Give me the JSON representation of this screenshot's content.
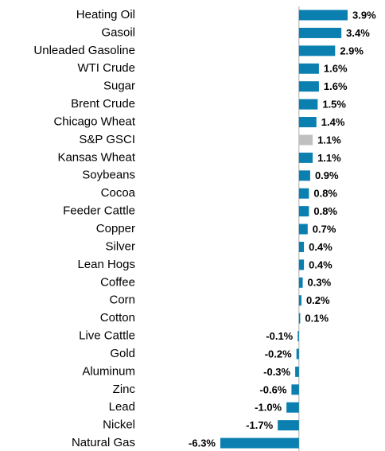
{
  "chart_data": {
    "type": "bar",
    "orientation": "horizontal",
    "categories": [
      "Heating Oil",
      "Gasoil",
      "Unleaded Gasoline",
      "WTI Crude",
      "Sugar",
      "Brent Crude",
      "Chicago Wheat",
      "S&P GSCI",
      "Kansas Wheat",
      "Soybeans",
      "Cocoa",
      "Feeder Cattle",
      "Copper",
      "Silver",
      "Lean Hogs",
      "Coffee",
      "Corn",
      "Cotton",
      "Live Cattle",
      "Gold",
      "Aluminum",
      "Zinc",
      "Lead",
      "Nickel",
      "Natural Gas"
    ],
    "values": [
      3.9,
      3.4,
      2.9,
      1.6,
      1.6,
      1.5,
      1.4,
      1.1,
      1.1,
      0.9,
      0.8,
      0.8,
      0.7,
      0.4,
      0.4,
      0.3,
      0.2,
      0.1,
      -0.1,
      -0.2,
      -0.3,
      -0.6,
      -1.0,
      -1.7,
      -6.3
    ],
    "value_labels": [
      "3.9%",
      "3.4%",
      "2.9%",
      "1.6%",
      "1.6%",
      "1.5%",
      "1.4%",
      "1.1%",
      "1.1%",
      "0.9%",
      "0.8%",
      "0.8%",
      "0.7%",
      "0.4%",
      "0.4%",
      "0.3%",
      "0.2%",
      "0.1%",
      "-0.1%",
      "-0.2%",
      "-0.3%",
      "-0.6%",
      "-1.0%",
      "-1.7%",
      "-6.3%"
    ],
    "colors": [
      "#0a7fb0",
      "#0a7fb0",
      "#0a7fb0",
      "#0a7fb0",
      "#0a7fb0",
      "#0a7fb0",
      "#0a7fb0",
      "#c0c0c0",
      "#0a7fb0",
      "#0a7fb0",
      "#0a7fb0",
      "#0a7fb0",
      "#0a7fb0",
      "#0a7fb0",
      "#0a7fb0",
      "#0a7fb0",
      "#0a7fb0",
      "#0a7fb0",
      "#0a7fb0",
      "#0a7fb0",
      "#0a7fb0",
      "#0a7fb0",
      "#0a7fb0",
      "#0a7fb0",
      "#0a7fb0"
    ],
    "xlim": [
      -6.3,
      3.9
    ]
  }
}
